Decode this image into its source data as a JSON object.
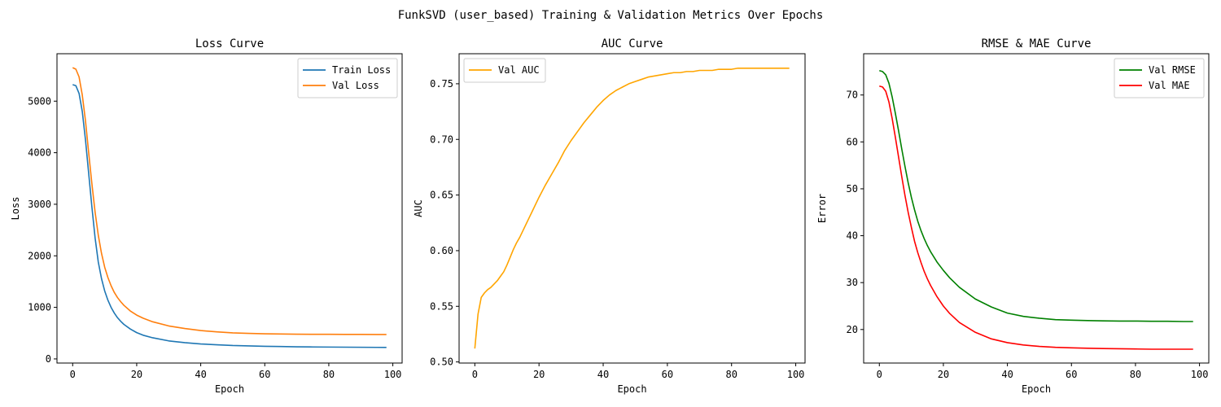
{
  "figure": {
    "suptitle": "FunkSVD (user_based) Training & Validation Metrics Over Epochs"
  },
  "chart_data": [
    {
      "type": "line",
      "title": "Loss Curve",
      "xlabel": "Epoch",
      "ylabel": "Loss",
      "xlim": [
        -4.9,
        102.9
      ],
      "ylim": [
        -80,
        5920
      ],
      "xticks": [
        0,
        20,
        40,
        60,
        80,
        100
      ],
      "yticks": [
        0,
        1000,
        2000,
        3000,
        4000,
        5000
      ],
      "legend": "top-right",
      "grid": false,
      "series": [
        {
          "name": "Train Loss",
          "color": "#1f77b4",
          "x": [
            0,
            1,
            2,
            3,
            4,
            5,
            6,
            7,
            8,
            9,
            10,
            11,
            12,
            13,
            14,
            15,
            16,
            18,
            20,
            22,
            25,
            30,
            35,
            40,
            45,
            50,
            55,
            60,
            65,
            70,
            75,
            80,
            85,
            90,
            95,
            98
          ],
          "y": [
            5320,
            5300,
            5150,
            4800,
            4250,
            3600,
            2950,
            2350,
            1880,
            1560,
            1320,
            1140,
            1000,
            890,
            800,
            730,
            670,
            580,
            510,
            460,
            410,
            350,
            315,
            290,
            275,
            260,
            252,
            245,
            240,
            235,
            232,
            230,
            228,
            226,
            224,
            223
          ]
        },
        {
          "name": "Val Loss",
          "color": "#ff7f0e",
          "x": [
            0,
            1,
            2,
            3,
            4,
            5,
            6,
            7,
            8,
            9,
            10,
            11,
            12,
            13,
            14,
            15,
            16,
            18,
            20,
            22,
            25,
            30,
            35,
            40,
            45,
            50,
            55,
            60,
            65,
            70,
            75,
            80,
            85,
            90,
            95,
            98
          ],
          "y": [
            5650,
            5620,
            5470,
            5120,
            4620,
            4000,
            3400,
            2850,
            2400,
            2050,
            1780,
            1580,
            1420,
            1290,
            1190,
            1110,
            1040,
            930,
            850,
            790,
            720,
            640,
            590,
            550,
            525,
            505,
            495,
            488,
            484,
            480,
            478,
            477,
            476,
            475,
            474,
            473
          ]
        }
      ]
    },
    {
      "type": "line",
      "title": "AUC Curve",
      "xlabel": "Epoch",
      "ylabel": "AUC",
      "xlim": [
        -4.9,
        102.9
      ],
      "ylim": [
        0.499,
        0.777
      ],
      "xticks": [
        0,
        20,
        40,
        60,
        80,
        100
      ],
      "yticks": [
        0.5,
        0.55,
        0.6,
        0.65,
        0.7,
        0.75
      ],
      "legend": "top-left",
      "grid": false,
      "series": [
        {
          "name": "Val AUC",
          "color": "#ffa500",
          "x": [
            0,
            1,
            2,
            3,
            4,
            5,
            6,
            7,
            8,
            9,
            10,
            11,
            12,
            13,
            14,
            15,
            16,
            17,
            18,
            19,
            20,
            22,
            24,
            26,
            28,
            30,
            32,
            34,
            36,
            38,
            40,
            42,
            44,
            46,
            48,
            50,
            52,
            54,
            56,
            58,
            60,
            62,
            64,
            66,
            68,
            70,
            72,
            74,
            76,
            78,
            80,
            82,
            84,
            86,
            88,
            90,
            92,
            94,
            96,
            98
          ],
          "y": [
            0.512,
            0.543,
            0.558,
            0.562,
            0.565,
            0.567,
            0.57,
            0.573,
            0.577,
            0.581,
            0.587,
            0.594,
            0.601,
            0.607,
            0.612,
            0.618,
            0.624,
            0.63,
            0.636,
            0.642,
            0.648,
            0.659,
            0.669,
            0.679,
            0.69,
            0.699,
            0.707,
            0.715,
            0.722,
            0.729,
            0.735,
            0.74,
            0.744,
            0.747,
            0.75,
            0.752,
            0.754,
            0.756,
            0.757,
            0.758,
            0.759,
            0.76,
            0.76,
            0.761,
            0.761,
            0.762,
            0.762,
            0.762,
            0.763,
            0.763,
            0.763,
            0.764,
            0.764,
            0.764,
            0.764,
            0.764,
            0.764,
            0.764,
            0.764,
            0.764
          ]
        }
      ]
    },
    {
      "type": "line",
      "title": "RMSE & MAE Curve",
      "xlabel": "Epoch",
      "ylabel": "Error",
      "xlim": [
        -4.9,
        102.9
      ],
      "ylim": [
        12.85,
        78.8
      ],
      "xticks": [
        0,
        20,
        40,
        60,
        80,
        100
      ],
      "yticks": [
        20,
        30,
        40,
        50,
        60,
        70
      ],
      "legend": "top-right",
      "grid": false,
      "series": [
        {
          "name": "Val RMSE",
          "color": "#008000",
          "x": [
            0,
            1,
            2,
            3,
            4,
            5,
            6,
            7,
            8,
            9,
            10,
            11,
            12,
            13,
            14,
            15,
            16,
            18,
            20,
            22,
            25,
            30,
            35,
            40,
            45,
            50,
            55,
            60,
            65,
            70,
            75,
            80,
            85,
            90,
            95,
            98
          ],
          "y": [
            75.2,
            75.0,
            74.3,
            72.5,
            69.6,
            66.1,
            62.4,
            58.5,
            54.8,
            51.3,
            48.2,
            45.5,
            43.1,
            41.1,
            39.4,
            37.9,
            36.6,
            34.4,
            32.6,
            31.0,
            29.0,
            26.5,
            24.8,
            23.5,
            22.8,
            22.4,
            22.1,
            22.0,
            21.9,
            21.85,
            21.8,
            21.8,
            21.75,
            21.75,
            21.7,
            21.7
          ]
        },
        {
          "name": "Val MAE",
          "color": "#ff0000",
          "x": [
            0,
            1,
            2,
            3,
            4,
            5,
            6,
            7,
            8,
            9,
            10,
            11,
            12,
            13,
            14,
            15,
            16,
            18,
            20,
            22,
            25,
            30,
            35,
            40,
            45,
            50,
            55,
            60,
            65,
            70,
            75,
            80,
            85,
            90,
            95,
            98
          ],
          "y": [
            71.9,
            71.7,
            70.8,
            68.5,
            65.0,
            61.0,
            56.8,
            52.6,
            48.6,
            45.0,
            41.8,
            38.8,
            36.4,
            34.3,
            32.4,
            30.8,
            29.4,
            27.0,
            25.0,
            23.4,
            21.5,
            19.4,
            18.0,
            17.2,
            16.7,
            16.4,
            16.2,
            16.1,
            16.0,
            15.95,
            15.9,
            15.85,
            15.8,
            15.8,
            15.8,
            15.8
          ]
        }
      ]
    }
  ]
}
